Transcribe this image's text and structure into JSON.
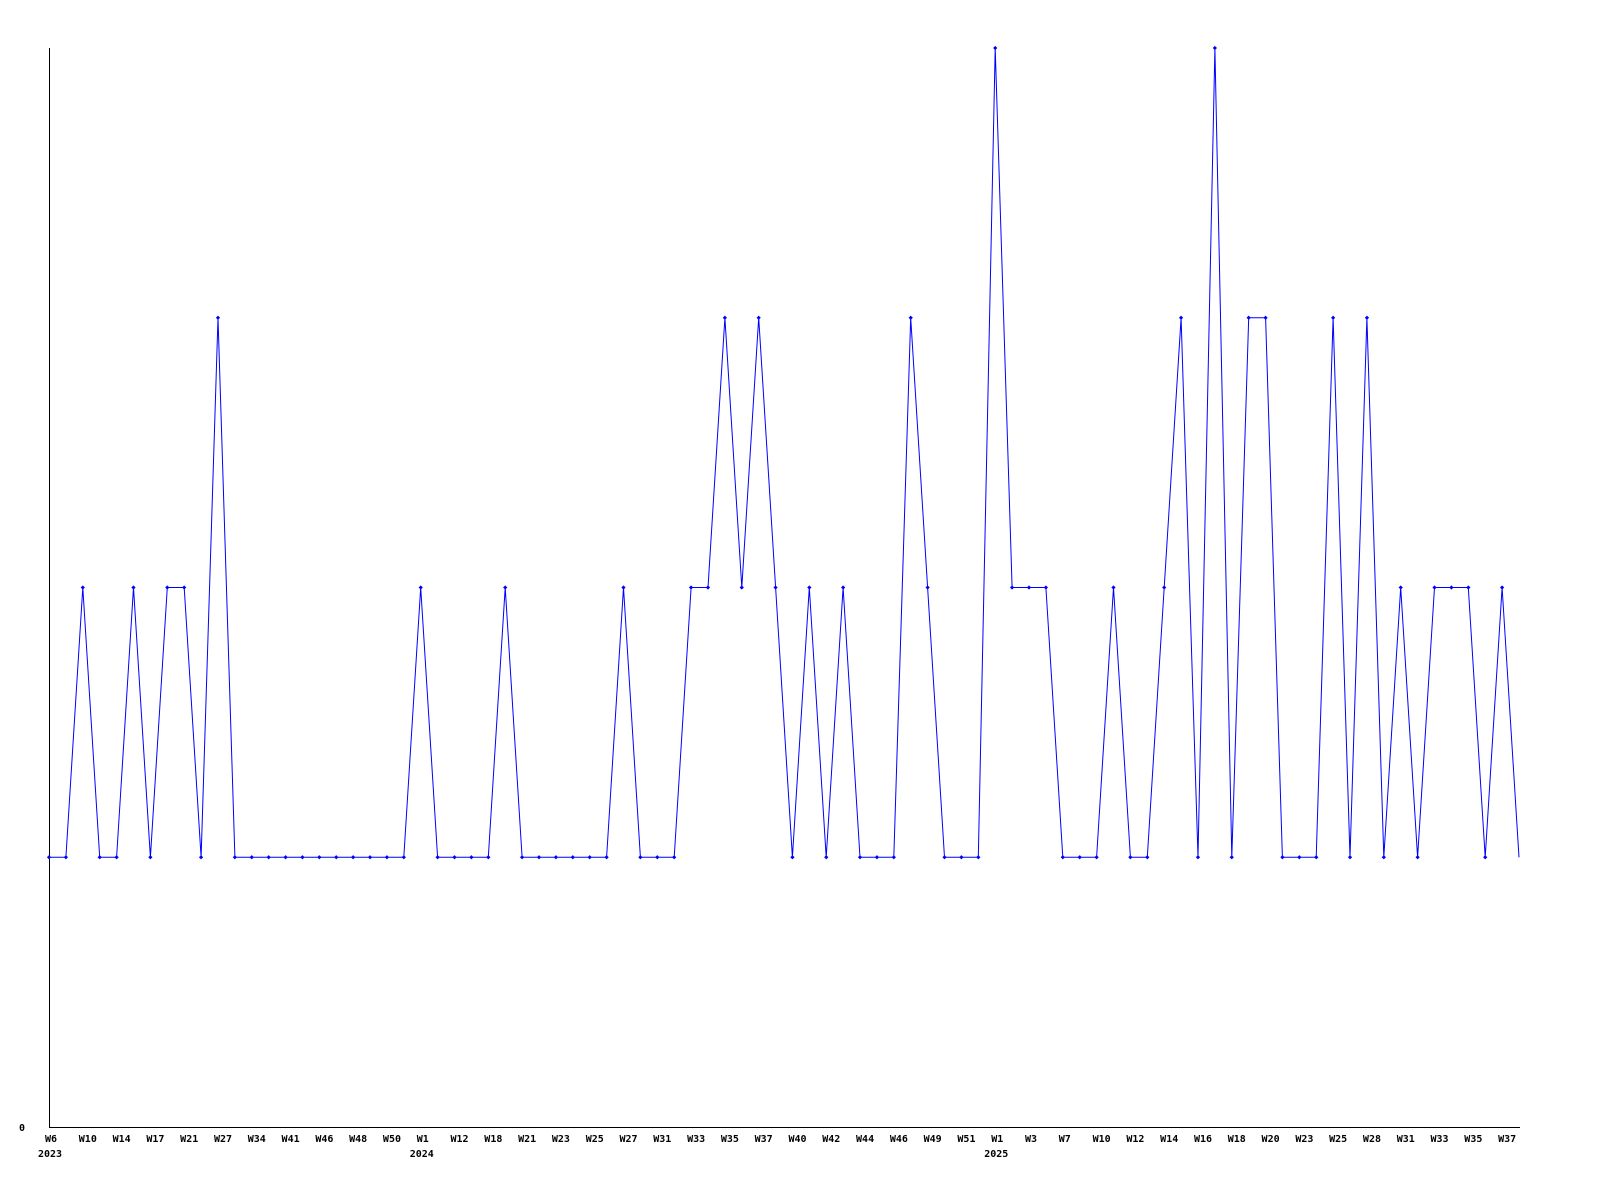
{
  "chart_data": {
    "type": "line",
    "title": "",
    "xlabel": "",
    "ylabel": "",
    "ylim": [
      0,
      4
    ],
    "y_tick_labels": [
      "0"
    ],
    "grid": false,
    "line_color": "#0000ff",
    "marker_color": "#0000ff",
    "axis_color": "#000000",
    "x_tick_every": 2,
    "x_tick_labels": [
      "W6",
      "W10",
      "W14",
      "W17",
      "W21",
      "W27",
      "W34",
      "W41",
      "W46",
      "W48",
      "W50",
      "W1",
      "W12",
      "W18",
      "W21",
      "W23",
      "W25",
      "W27",
      "W31",
      "W33",
      "W35",
      "W37",
      "W40",
      "W42",
      "W44",
      "W46",
      "W49",
      "W51",
      "W1",
      "W3",
      "W7",
      "W10",
      "W12",
      "W14",
      "W16",
      "W18",
      "W20",
      "W23",
      "W25",
      "W28",
      "W31",
      "W33",
      "W35",
      "W37"
    ],
    "year_labels": [
      {
        "label": "2023",
        "at_tick": 0
      },
      {
        "label": "2024",
        "at_tick": 11
      },
      {
        "label": "2025",
        "at_tick": 28
      }
    ],
    "values": [
      1,
      1,
      2,
      1,
      1,
      2,
      1,
      2,
      2,
      1,
      3,
      1,
      1,
      1,
      1,
      1,
      1,
      1,
      1,
      1,
      1,
      1,
      2,
      1,
      1,
      1,
      1,
      2,
      1,
      1,
      1,
      1,
      1,
      1,
      2,
      1,
      1,
      1,
      2,
      2,
      3,
      2,
      3,
      2,
      1,
      2,
      1,
      2,
      1,
      1,
      1,
      3,
      2,
      1,
      1,
      1,
      4,
      2,
      2,
      2,
      1,
      1,
      1,
      2,
      1,
      1,
      2,
      3,
      1,
      4,
      1,
      3,
      3,
      1,
      1,
      1,
      3,
      1,
      3,
      1,
      2,
      1,
      2,
      2,
      2,
      1,
      2,
      1
    ]
  }
}
